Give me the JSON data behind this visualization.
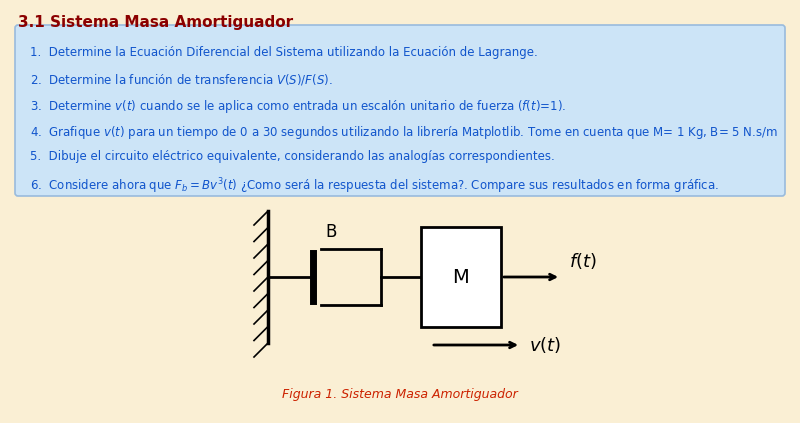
{
  "bg_color": "#faefd4",
  "box_bg_color": "#cce4f7",
  "box_border_color": "#99bbdd",
  "title": "3.1 Sistema Masa Amortiguador",
  "title_color": "#8b0000",
  "title_fontsize": 11,
  "items": [
    "1.  Determine la Ecuación Diferencial del Sistema utilizando la Ecuación de Lagrange.",
    "2.  Determine la función de transferencia $V(S)/F(S)$.",
    "3.  Determine $v(t)$ cuando se le aplica como entrada un escalón unitario de fuerza ($f(t)$=1).",
    "4.  Grafique $v(t)$ para un tiempo de 0 a 30 segundos utilizando la librería Matplotlib. Tome en cuenta que M= 1 Kg, B= 5 N.s/m",
    "5.  Dibuje el circuito eléctrico equivalente, considerando las analogías correspondientes.",
    "6.  Considere ahora que $F_b = Bv^3(t)$ ¿Como será la respuesta del sistema?. Compare sus resultados en forma gráfica."
  ],
  "item_color": "#1155cc",
  "item_fontsize": 8.5,
  "figure_caption": "Figura 1. Sistema Masa Amortiguador",
  "caption_color": "#cc2200",
  "caption_fontsize": 9
}
